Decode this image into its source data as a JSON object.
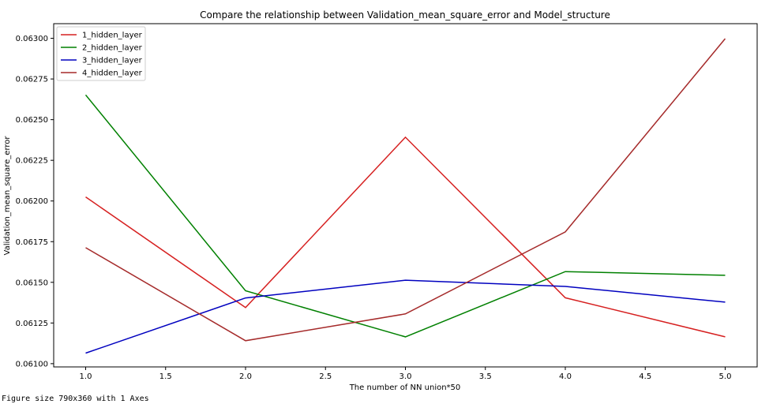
{
  "chart_data": {
    "type": "line",
    "title": "Compare the relationship between Validation_mean_square_error and Model_structure",
    "xlabel": "The number of NN union*50",
    "ylabel": "Validation_mean_square_error",
    "x": [
      1.0,
      2.0,
      3.0,
      4.0,
      5.0
    ],
    "xlim": [
      0.8,
      5.2
    ],
    "ylim": [
      0.06098,
      0.06309
    ],
    "xticks": [
      "1.0",
      "1.5",
      "2.0",
      "2.5",
      "3.0",
      "3.5",
      "4.0",
      "4.5",
      "5.0"
    ],
    "yticks": [
      "0.06100",
      "0.06125",
      "0.06150",
      "0.06175",
      "0.06200",
      "0.06225",
      "0.06250",
      "0.06275",
      "0.06300"
    ],
    "grid": false,
    "legend_position": "top-left",
    "series": [
      {
        "name": "1_hidden_layer",
        "color": "#d62020",
        "values": [
          0.062025,
          0.061345,
          0.062392,
          0.061405,
          0.061165
        ]
      },
      {
        "name": "2_hidden_layer",
        "color": "#008000",
        "values": [
          0.062652,
          0.061448,
          0.061165,
          0.061566,
          0.061543
        ]
      },
      {
        "name": "3_hidden_layer",
        "color": "#0000bf",
        "values": [
          0.061065,
          0.061404,
          0.061513,
          0.061475,
          0.061378
        ]
      },
      {
        "name": "4_hidden_layer",
        "color": "#a52a2a",
        "values": [
          0.061713,
          0.061141,
          0.061306,
          0.06181,
          0.062998
        ]
      }
    ]
  },
  "footer": {
    "text": "Figure size 790x360 with 1 Axes"
  }
}
